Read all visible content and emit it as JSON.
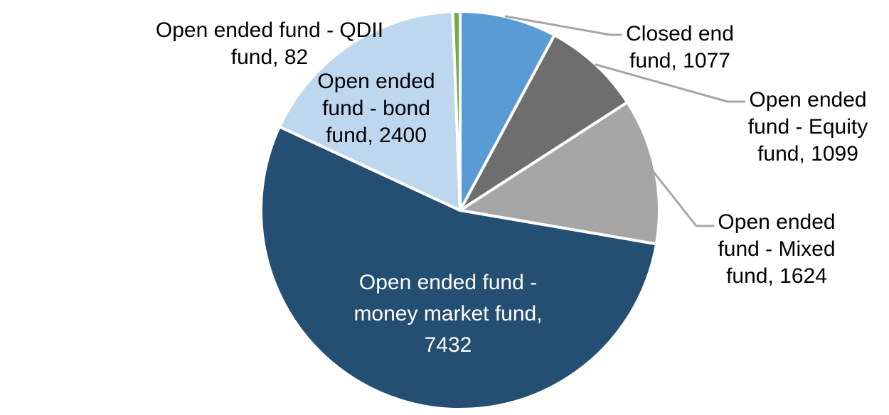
{
  "chart_data": {
    "type": "pie",
    "title": "",
    "legend_position": "none",
    "start_angle_deg": 0,
    "direction": "clockwise",
    "slices": [
      {
        "label": "Closed end fund",
        "value": 1077,
        "color": "#5B9BD5"
      },
      {
        "label": "Open ended fund - Equity fund",
        "value": 1099,
        "color": "#6E6E6E"
      },
      {
        "label": "Open ended fund - Mixed fund",
        "value": 1624,
        "color": "#A6A6A6"
      },
      {
        "label": "Open ended fund - money market fund",
        "value": 7432,
        "color": "#244E72"
      },
      {
        "label": "Open ended fund - bond fund",
        "value": 2400,
        "color": "#BDD7EE"
      },
      {
        "label": "Open ended fund - QDII fund",
        "value": 82,
        "color": "#70AD47"
      }
    ]
  },
  "labels": {
    "qdii": {
      "lines": [
        "Open ended fund - QDII",
        "fund, 82"
      ]
    },
    "bond": {
      "lines": [
        "Open ended",
        "fund - bond",
        "fund, 2400"
      ]
    },
    "closed": {
      "lines": [
        "Closed end",
        "fund, 1077"
      ]
    },
    "equity": {
      "lines": [
        "Open ended",
        "fund - Equity",
        "fund, 1099"
      ]
    },
    "mixed": {
      "lines": [
        "Open ended",
        "fund - Mixed",
        "fund, 1624"
      ]
    },
    "money": {
      "lines": [
        "Open ended fund -",
        "money market fund,",
        "7432"
      ]
    }
  },
  "colors": {
    "background": "#FFFFFF",
    "leader_line": "#A6A6A6",
    "slice_separator": "#FFFFFF",
    "outside_label_text": "#000000",
    "inside_label_text": "#FFFFFF"
  }
}
